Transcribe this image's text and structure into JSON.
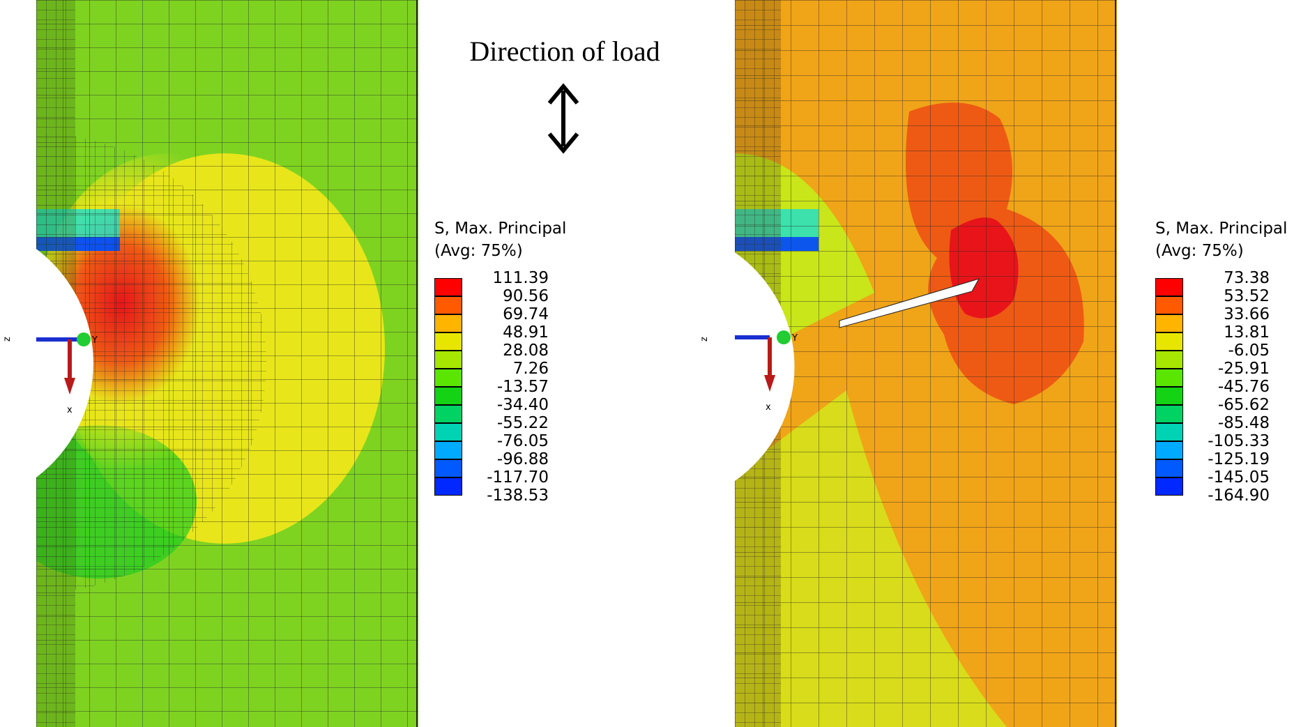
{
  "annotation": {
    "load_label": "Direction of load"
  },
  "axis_triad": {
    "x_label": "x",
    "y_label": "Y",
    "z_label": "z"
  },
  "colors": {
    "lime": "#7ed321",
    "yellowgreen": "#c8e619",
    "yellow": "#e8e61a",
    "orange": "#f4a614",
    "redorange": "#ee5a14",
    "red": "#e8141a",
    "green": "#22cc22",
    "cyan": "#19e0d0",
    "blue": "#0033ff"
  },
  "panels": [
    {
      "name": "left",
      "legend": {
        "title_line1": "S, Max. Principal",
        "title_line2": "(Avg: 75%)",
        "values": [
          "111.39",
          "90.56",
          "69.74",
          "48.91",
          "28.08",
          "7.26",
          "-13.57",
          "-34.40",
          "-55.22",
          "-76.05",
          "-96.88",
          "-117.70",
          "-138.53"
        ],
        "swatch_colors": [
          "#ff0000",
          "#ff5a00",
          "#ffb400",
          "#e6e600",
          "#a6e600",
          "#5ae600",
          "#14d214",
          "#00d264",
          "#00d2b4",
          "#00aaff",
          "#005aff",
          "#0028ff"
        ]
      }
    },
    {
      "name": "right",
      "legend": {
        "title_line1": "S, Max. Principal",
        "title_line2": "(Avg: 75%)",
        "values": [
          "73.38",
          "53.52",
          "33.66",
          "13.81",
          "-6.05",
          "-25.91",
          "-45.76",
          "-65.62",
          "-85.48",
          "-105.33",
          "-125.19",
          "-145.05",
          "-164.90"
        ],
        "swatch_colors": [
          "#ff0000",
          "#ff5a00",
          "#ffb400",
          "#e6e600",
          "#a6e600",
          "#5ae600",
          "#14d214",
          "#00d264",
          "#00d2b4",
          "#00aaff",
          "#005aff",
          "#0028ff"
        ]
      }
    }
  ]
}
